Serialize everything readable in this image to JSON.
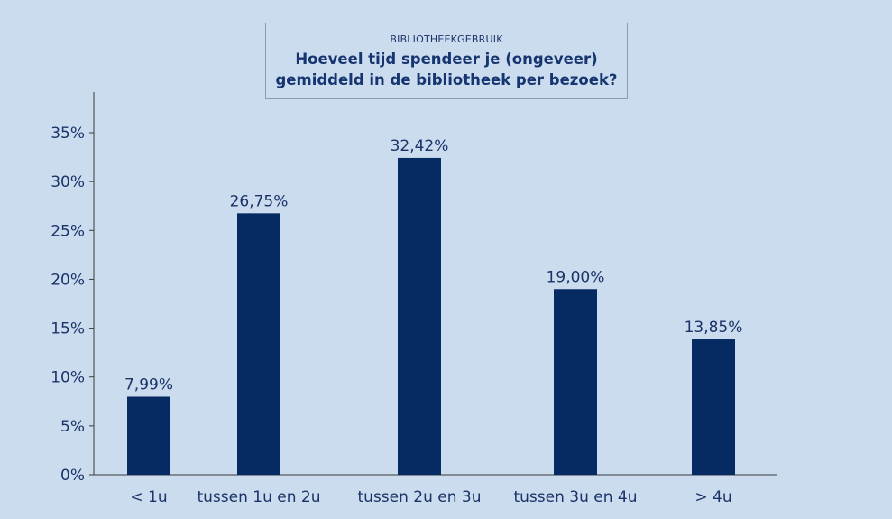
{
  "chart_data": {
    "type": "bar",
    "subtitle": "BIBLIOTHEEKGEBRUIK",
    "title": "Hoeveel tijd spendeer je (ongeveer)\ngemiddeld in de bibliotheek per bezoek?",
    "categories": [
      "< 1u",
      "tussen 1u en 2u",
      "tussen 2u en 3u",
      "tussen 3u en 4u",
      "> 4u"
    ],
    "values": [
      7.99,
      26.75,
      32.42,
      19.0,
      13.85
    ],
    "data_labels": [
      "7,99%",
      "26,75%",
      "32,42%",
      "19,00%",
      "13,85%"
    ],
    "yticks": [
      "0%",
      "5%",
      "10%",
      "15%",
      "20%",
      "25%",
      "30%",
      "35%"
    ],
    "ylim": [
      0,
      35
    ],
    "xlabel": "",
    "ylabel": "",
    "grid": false,
    "colors": {
      "bar": "#062b63",
      "background": "#cbdcef",
      "text": "#1b3468"
    }
  }
}
